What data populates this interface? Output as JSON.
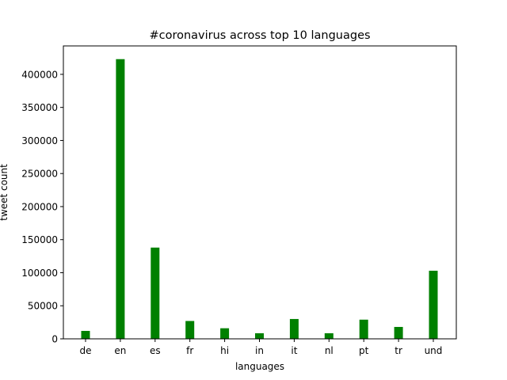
{
  "chart_data": {
    "type": "bar",
    "title": "#coronavirus across top 10 languages",
    "xlabel": "languages",
    "ylabel": "tweet count",
    "categories": [
      "de",
      "en",
      "es",
      "fr",
      "hi",
      "in",
      "it",
      "nl",
      "pt",
      "tr",
      "und"
    ],
    "values": [
      12000,
      423000,
      138000,
      27000,
      16000,
      8500,
      30000,
      8500,
      29000,
      18000,
      103000
    ],
    "ylim": [
      0,
      443000
    ],
    "yticks": [
      0,
      50000,
      100000,
      150000,
      200000,
      250000,
      300000,
      350000,
      400000
    ],
    "bar_color": "#008000",
    "grid": false,
    "legend": "none"
  }
}
